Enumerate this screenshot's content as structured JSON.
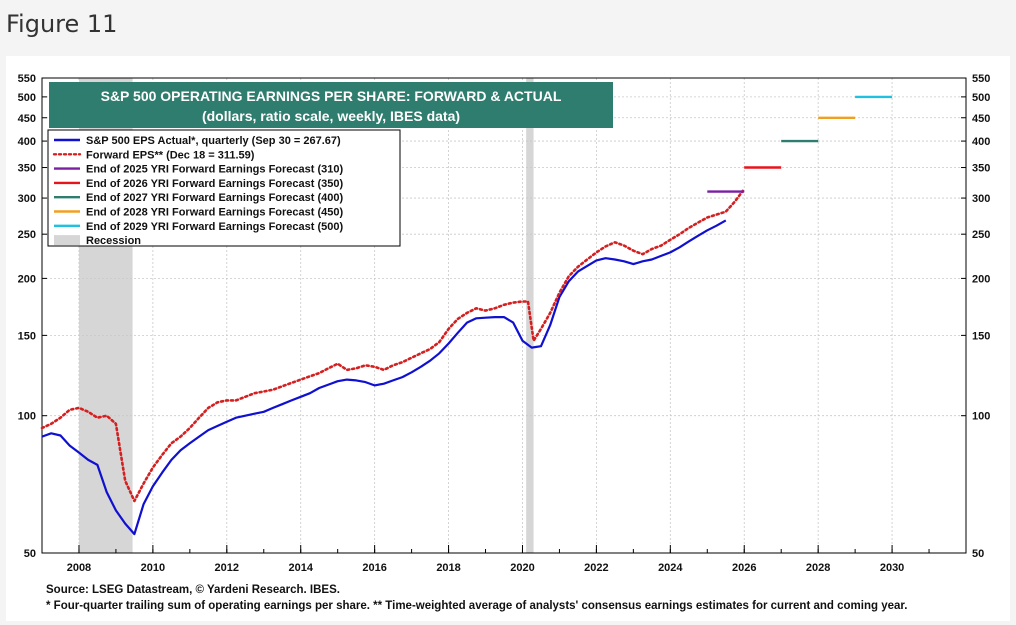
{
  "figure_label": "Figure 11",
  "source": "Source: LSEG Datastream, © Yardeni Research. IBES.",
  "footnote": "* Four-quarter trailing sum of operating earnings per share.   ** Time-weighted average of analysts' consensus earnings estimates for current and coming year.",
  "colors": {
    "actual": "#1010d0",
    "forward": "#d42020",
    "title_box": "#2e7d6e",
    "recession": "#d6d6d6"
  },
  "chart_data": {
    "type": "line",
    "title": "S&P 500 OPERATING EARNINGS PER SHARE: FORWARD & ACTUAL",
    "subtitle": "(dollars, ratio scale, weekly, IBES data)",
    "y_scale": "log",
    "ylim": [
      50,
      550
    ],
    "xlim": [
      2007.0,
      2032.0
    ],
    "y_ticks": [
      50,
      100,
      150,
      200,
      250,
      300,
      350,
      400,
      450,
      500,
      550
    ],
    "x_ticks": [
      2008,
      2010,
      2012,
      2014,
      2016,
      2018,
      2020,
      2022,
      2024,
      2026,
      2028,
      2030
    ],
    "grid": true,
    "legend_position": "top-left",
    "recessions": [
      [
        2008.0,
        2009.45
      ],
      [
        2020.1,
        2020.3
      ]
    ],
    "series": [
      {
        "name": "S&P 500 EPS Actual*, quarterly (Sep 30 = 267.67)",
        "color": "#1010d0",
        "style": "solid",
        "x": [
          2007.0,
          2007.25,
          2007.5,
          2007.75,
          2008.0,
          2008.25,
          2008.5,
          2008.75,
          2009.0,
          2009.25,
          2009.5,
          2009.75,
          2010.0,
          2010.25,
          2010.5,
          2010.75,
          2011.0,
          2011.25,
          2011.5,
          2011.75,
          2012.0,
          2012.25,
          2012.5,
          2012.75,
          2013.0,
          2013.25,
          2013.5,
          2013.75,
          2014.0,
          2014.25,
          2014.5,
          2014.75,
          2015.0,
          2015.25,
          2015.5,
          2015.75,
          2016.0,
          2016.25,
          2016.5,
          2016.75,
          2017.0,
          2017.25,
          2017.5,
          2017.75,
          2018.0,
          2018.25,
          2018.5,
          2018.75,
          2019.0,
          2019.25,
          2019.5,
          2019.75,
          2020.0,
          2020.25,
          2020.5,
          2020.75,
          2021.0,
          2021.25,
          2021.5,
          2021.75,
          2022.0,
          2022.25,
          2022.5,
          2022.75,
          2023.0,
          2023.25,
          2023.5,
          2023.75,
          2024.0,
          2024.25,
          2024.5,
          2024.75,
          2025.0,
          2025.25,
          2025.5
        ],
        "values": [
          90,
          91.5,
          90.5,
          86,
          83,
          80,
          78,
          68,
          62,
          58,
          55,
          64,
          70,
          75,
          80,
          84,
          87,
          90,
          93,
          95,
          97,
          99,
          100,
          101,
          102,
          104,
          106,
          108,
          110,
          112,
          115,
          117,
          119,
          120,
          119.5,
          118.5,
          116.5,
          117.5,
          119.5,
          121.5,
          124.5,
          128,
          132,
          137,
          144,
          152,
          160,
          163.5,
          164,
          164.5,
          164.5,
          160,
          146,
          141,
          142,
          158,
          182,
          197,
          207,
          213,
          219,
          221.5,
          220,
          218,
          215,
          218,
          220,
          224,
          228,
          234,
          241,
          248,
          255,
          261,
          268
        ]
      },
      {
        "name": "Forward EPS** (Dec 18 = 311.59)",
        "color": "#d42020",
        "style": "dotted",
        "x": [
          2007.0,
          2007.25,
          2007.5,
          2007.75,
          2008.0,
          2008.25,
          2008.5,
          2008.75,
          2009.0,
          2009.25,
          2009.5,
          2009.75,
          2010.0,
          2010.25,
          2010.5,
          2010.75,
          2011.0,
          2011.25,
          2011.5,
          2011.75,
          2012.0,
          2012.25,
          2012.5,
          2012.75,
          2013.0,
          2013.25,
          2013.5,
          2013.75,
          2014.0,
          2014.25,
          2014.5,
          2014.75,
          2015.0,
          2015.25,
          2015.5,
          2015.75,
          2016.0,
          2016.25,
          2016.5,
          2016.75,
          2017.0,
          2017.25,
          2017.5,
          2017.75,
          2018.0,
          2018.25,
          2018.5,
          2018.75,
          2019.0,
          2019.25,
          2019.5,
          2019.75,
          2020.0,
          2020.15,
          2020.3,
          2020.5,
          2020.75,
          2021.0,
          2021.25,
          2021.5,
          2021.75,
          2022.0,
          2022.25,
          2022.5,
          2022.75,
          2023.0,
          2023.25,
          2023.5,
          2023.75,
          2024.0,
          2024.25,
          2024.5,
          2024.75,
          2025.0,
          2025.25,
          2025.5,
          2025.75,
          2025.96
        ],
        "values": [
          94,
          96,
          99,
          103,
          104,
          102,
          99,
          100,
          96,
          72,
          65,
          71,
          77,
          82,
          87,
          90,
          94,
          99,
          104,
          107,
          108,
          108,
          110,
          112,
          113,
          114,
          116,
          118,
          120,
          122,
          124,
          127,
          130,
          126,
          127,
          129,
          128,
          126,
          129,
          131,
          134,
          137,
          140,
          145,
          155,
          163,
          168,
          172,
          170,
          172,
          175,
          177,
          178,
          178,
          146,
          155,
          168,
          186,
          202,
          212,
          220,
          228,
          235,
          240,
          236,
          230,
          226,
          232,
          236,
          243,
          250,
          258,
          265,
          272,
          276,
          280,
          295,
          311
        ]
      },
      {
        "name": "End of 2025 YRI Forward Earnings Forecast (310)",
        "color": "#7b1fa2",
        "style": "solid",
        "x": [
          2025.0,
          2026.0
        ],
        "values": [
          310,
          310
        ]
      },
      {
        "name": "End of 2026 YRI Forward Earnings Forecast (350)",
        "color": "#e8141c",
        "style": "solid",
        "x": [
          2026.0,
          2027.0
        ],
        "values": [
          350,
          350
        ]
      },
      {
        "name": "End of 2027 YRI Forward Earnings Forecast (400)",
        "color": "#2e7d6e",
        "style": "solid",
        "x": [
          2027.0,
          2028.0
        ],
        "values": [
          400,
          400
        ]
      },
      {
        "name": "End of 2028 YRI Forward Earnings Forecast (450)",
        "color": "#f0a020",
        "style": "solid",
        "x": [
          2028.0,
          2029.0
        ],
        "values": [
          450,
          450
        ]
      },
      {
        "name": "End of 2029 YRI Forward Earnings Forecast (500)",
        "color": "#20c0e0",
        "style": "solid",
        "x": [
          2029.0,
          2030.0
        ],
        "values": [
          500,
          500
        ]
      }
    ],
    "recession_label": "Recession"
  }
}
